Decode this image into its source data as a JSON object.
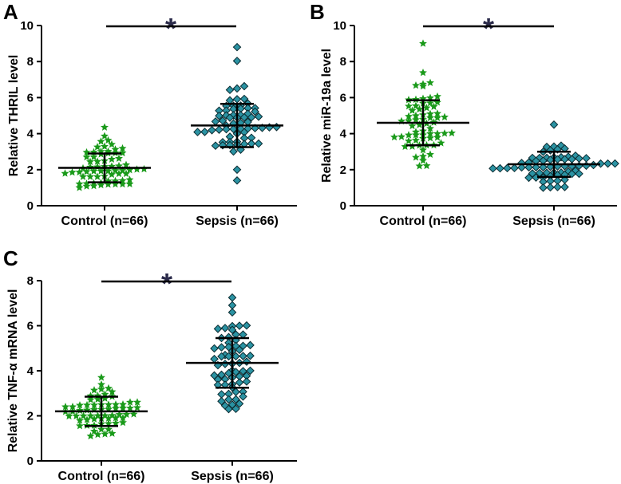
{
  "chart_data": [
    {
      "type": "scatter",
      "panel": "A",
      "ylabel": "Relative THRIL level",
      "categories": [
        "Control (n=66)",
        "Sepsis (n=66)"
      ],
      "ylim": [
        0,
        10
      ],
      "yticks": [
        0,
        2,
        4,
        6,
        8,
        10
      ],
      "significance": "*",
      "series": [
        {
          "name": "Control (n=66)",
          "marker": "star",
          "color": "#1a9a1a",
          "mean": 2.1,
          "sd": 0.8,
          "min": 1.0,
          "max": 4.35,
          "n": 66
        },
        {
          "name": "Sepsis (n=66)",
          "marker": "diamond",
          "color": "#2b93a3",
          "mean": 4.45,
          "sd": 1.2,
          "min": 1.4,
          "max": 8.8,
          "n": 66
        }
      ]
    },
    {
      "type": "scatter",
      "panel": "B",
      "ylabel": "Relative miR-19a level",
      "categories": [
        "Control (n=66)",
        "Sepsis (n=66)"
      ],
      "ylim": [
        0,
        10
      ],
      "yticks": [
        0,
        2,
        4,
        6,
        8,
        10
      ],
      "significance": "*",
      "series": [
        {
          "name": "Control (n=66)",
          "marker": "star",
          "color": "#1a9a1a",
          "mean": 4.6,
          "sd": 1.25,
          "min": 2.2,
          "max": 9.0,
          "n": 66
        },
        {
          "name": "Sepsis (n=66)",
          "marker": "diamond",
          "color": "#2b93a3",
          "mean": 2.3,
          "sd": 0.7,
          "min": 1.0,
          "max": 4.5,
          "n": 66
        }
      ]
    },
    {
      "type": "scatter",
      "panel": "C",
      "ylabel": "Relative TNF-α mRNA level",
      "categories": [
        "Control (n=66)",
        "Sepsis (n=66)"
      ],
      "ylim": [
        0,
        8
      ],
      "yticks": [
        0,
        2,
        4,
        6,
        8
      ],
      "significance": "*",
      "series": [
        {
          "name": "Control (n=66)",
          "marker": "star",
          "color": "#1a9a1a",
          "mean": 2.2,
          "sd": 0.65,
          "min": 1.1,
          "max": 3.7,
          "n": 66
        },
        {
          "name": "Sepsis (n=66)",
          "marker": "diamond",
          "color": "#2b93a3",
          "mean": 4.35,
          "sd": 1.1,
          "min": 2.3,
          "max": 7.25,
          "n": 66
        }
      ]
    }
  ]
}
